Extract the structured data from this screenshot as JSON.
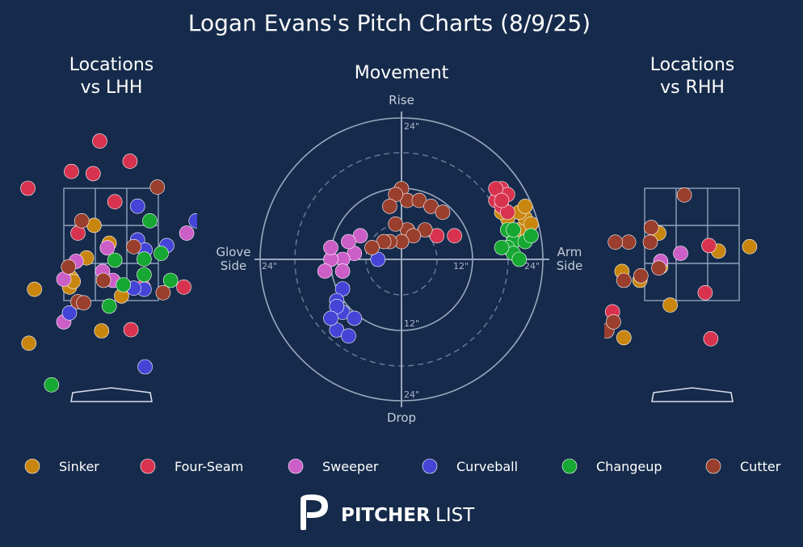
{
  "title": "Logan Evans's Pitch Charts (8/9/25)",
  "panels": {
    "lhh_title_line1": "Locations",
    "lhh_title_line2": "vs LHH",
    "movement_title": "Movement",
    "rhh_title_line1": "Locations",
    "rhh_title_line2": "vs RHH"
  },
  "movement_labels": {
    "top": "Rise",
    "bottom": "Drop",
    "left_line1": "Glove",
    "left_line2": "Side",
    "right_line1": "Arm",
    "right_line2": "Side",
    "ring_labels": [
      "24\"",
      "24\"",
      "24\"",
      "24\"",
      "12\"",
      "12\""
    ]
  },
  "logo": {
    "bold": "PITCHER",
    "light": "LIST"
  },
  "colors": {
    "background": "#162b4b",
    "Sinker": "#c8860f",
    "Four-Seam": "#d7334f",
    "Sweeper": "#cc5ec8",
    "Curveball": "#4444d6",
    "Changeup": "#16a832",
    "Cutter": "#9a3e2d"
  },
  "chart_data": [
    {
      "type": "scatter",
      "title": "Locations vs LHH",
      "units": "strike-zone widths/heights (0..1 = zone)",
      "series": [
        {
          "name": "Sinker",
          "points": [
            [
              0.61,
              0.04
            ],
            [
              0.32,
              0.67
            ],
            [
              -0.31,
              0.1
            ],
            [
              0.48,
              0.51
            ],
            [
              0.24,
              0.38
            ],
            [
              0.06,
              0.12
            ],
            [
              0.08,
              0.2
            ],
            [
              0.1,
              0.17
            ],
            [
              0.4,
              -0.27
            ],
            [
              -0.37,
              -0.38
            ]
          ]
        },
        {
          "name": "Four-Seam",
          "points": [
            [
              0.38,
              1.42
            ],
            [
              0.7,
              1.24
            ],
            [
              0.08,
              1.15
            ],
            [
              0.31,
              1.13
            ],
            [
              0.54,
              0.88
            ],
            [
              0.15,
              0.6
            ],
            [
              -0.38,
              1.0
            ],
            [
              0.84,
              0.12
            ],
            [
              0.71,
              -0.26
            ],
            [
              1.27,
              0.12
            ]
          ]
        },
        {
          "name": "Sweeper",
          "points": [
            [
              0.46,
              0.47
            ],
            [
              0.13,
              0.35
            ],
            [
              0.41,
              0.26
            ],
            [
              0.52,
              0.18
            ],
            [
              -0.0,
              0.19
            ],
            [
              1.3,
              0.6
            ],
            [
              0.0,
              -0.19
            ]
          ]
        },
        {
          "name": "Curveball",
          "points": [
            [
              0.78,
              0.84
            ],
            [
              0.78,
              0.54
            ],
            [
              0.86,
              0.45
            ],
            [
              1.09,
              0.49
            ],
            [
              0.85,
              0.1
            ],
            [
              0.74,
              0.11
            ],
            [
              0.86,
              -0.59
            ],
            [
              1.4,
              0.71
            ],
            [
              0.06,
              -0.11
            ]
          ]
        },
        {
          "name": "Changeup",
          "points": [
            [
              0.91,
              0.71
            ],
            [
              0.54,
              0.36
            ],
            [
              0.85,
              0.37
            ],
            [
              1.03,
              0.42
            ],
            [
              0.85,
              0.23
            ],
            [
              0.63,
              0.14
            ],
            [
              0.48,
              -0.05
            ],
            [
              1.13,
              0.18
            ],
            [
              -0.13,
              -0.75
            ]
          ]
        },
        {
          "name": "Cutter",
          "points": [
            [
              0.99,
              1.01
            ],
            [
              0.19,
              0.71
            ],
            [
              0.74,
              0.48
            ],
            [
              0.05,
              0.3
            ],
            [
              0.42,
              0.18
            ],
            [
              0.15,
              -0.01
            ],
            [
              1.05,
              0.07
            ],
            [
              0.21,
              -0.02
            ]
          ]
        }
      ]
    },
    {
      "type": "scatter",
      "title": "Movement",
      "xlabel": "Glove Side / Arm Side",
      "ylabel": "Drop / Rise",
      "units": "inches",
      "xlim": [
        -27,
        27
      ],
      "ylim": [
        -27,
        27
      ],
      "rings": [
        12,
        18,
        24
      ],
      "series": [
        {
          "name": "Sinker",
          "points": [
            [
              19,
              3
            ],
            [
              20,
              5
            ],
            [
              21,
              7
            ],
            [
              22,
              6
            ],
            [
              19,
              4
            ],
            [
              18,
              7
            ],
            [
              20,
              8
            ],
            [
              21,
              9
            ],
            [
              22,
              4
            ],
            [
              17,
              8
            ],
            [
              19,
              5
            ]
          ]
        },
        {
          "name": "Four-Seam",
          "points": [
            [
              17,
              12
            ],
            [
              18,
              11
            ],
            [
              16,
              10
            ],
            [
              17,
              9
            ],
            [
              16,
              12
            ],
            [
              18,
              8
            ],
            [
              17,
              10
            ],
            [
              9,
              4
            ],
            [
              6,
              4
            ]
          ]
        },
        {
          "name": "Sweeper",
          "points": [
            [
              -7,
              4
            ],
            [
              -8,
              1
            ],
            [
              -10,
              0
            ],
            [
              -12,
              0
            ],
            [
              -13,
              -2
            ],
            [
              -10,
              -2
            ],
            [
              -12,
              2
            ],
            [
              -9,
              3
            ]
          ]
        },
        {
          "name": "Curveball",
          "points": [
            [
              -4,
              0
            ],
            [
              -10,
              -5
            ],
            [
              -11,
              -7
            ],
            [
              -10,
              -9
            ],
            [
              -11,
              -12
            ],
            [
              -9,
              -13
            ],
            [
              -11,
              -8
            ],
            [
              -8,
              -10
            ],
            [
              -12,
              -10
            ]
          ]
        },
        {
          "name": "Changeup",
          "points": [
            [
              18,
              5
            ],
            [
              19,
              3
            ],
            [
              18,
              2
            ],
            [
              21,
              3
            ],
            [
              19,
              1
            ],
            [
              20,
              0
            ],
            [
              17,
              2
            ],
            [
              22,
              4
            ],
            [
              19,
              5
            ]
          ]
        },
        {
          "name": "Cutter",
          "points": [
            [
              0,
              12
            ],
            [
              1,
              10
            ],
            [
              3,
              10
            ],
            [
              5,
              9
            ],
            [
              -1,
              11
            ],
            [
              7,
              8
            ],
            [
              4,
              5
            ],
            [
              1,
              5
            ],
            [
              2,
              4
            ],
            [
              -2,
              9
            ],
            [
              -1,
              6
            ],
            [
              0,
              3
            ],
            [
              -2,
              3
            ],
            [
              -3,
              3
            ],
            [
              -5,
              2
            ]
          ]
        }
      ]
    },
    {
      "type": "scatter",
      "title": "Locations vs RHH",
      "units": "strike-zone widths/heights (0..1 = zone)",
      "series": [
        {
          "name": "Sinker",
          "points": [
            [
              1.11,
              0.48
            ],
            [
              0.17,
              0.3
            ],
            [
              0.15,
              0.6
            ],
            [
              0.78,
              0.44
            ],
            [
              -0.24,
              0.26
            ],
            [
              -0.05,
              0.18
            ],
            [
              0.27,
              -0.04
            ],
            [
              -0.22,
              -0.33
            ]
          ]
        },
        {
          "name": "Four-Seam",
          "points": [
            [
              0.68,
              0.49
            ],
            [
              0.64,
              0.07
            ],
            [
              0.7,
              -0.34
            ],
            [
              -0.34,
              -0.1
            ]
          ]
        },
        {
          "name": "Sweeper",
          "points": [
            [
              0.38,
              0.42
            ],
            [
              0.17,
              0.35
            ]
          ]
        },
        {
          "name": "Curveball",
          "points": []
        },
        {
          "name": "Changeup",
          "points": []
        },
        {
          "name": "Cutter",
          "points": [
            [
              0.42,
              0.94
            ],
            [
              0.07,
              0.65
            ],
            [
              -0.17,
              0.52
            ],
            [
              0.06,
              0.52
            ],
            [
              -0.31,
              0.52
            ],
            [
              -0.04,
              0.22
            ],
            [
              0.15,
              0.29
            ],
            [
              -0.22,
              0.18
            ],
            [
              -0.4,
              -0.27
            ],
            [
              -0.33,
              -0.19
            ]
          ]
        }
      ]
    }
  ],
  "legend": [
    "Sinker",
    "Four-Seam",
    "Sweeper",
    "Curveball",
    "Changeup",
    "Cutter"
  ]
}
